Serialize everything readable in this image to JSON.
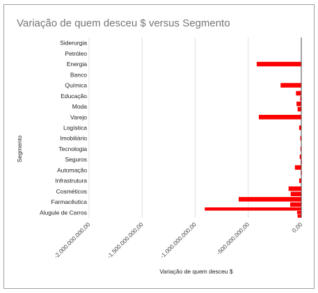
{
  "chart_data": {
    "type": "bar",
    "orientation": "horizontal",
    "title": "Variação de quem desceu $ versus Segmento",
    "xlabel": "Variação de quem desceu $",
    "ylabel": "Segmento",
    "xlim": [
      -2000000000,
      0
    ],
    "x_ticks": [
      {
        "value": -2000000000,
        "label": "-2.000.000.000,00"
      },
      {
        "value": -1500000000,
        "label": "-1.500.000.000,00"
      },
      {
        "value": -1000000000,
        "label": "-1.000.000.000,00"
      },
      {
        "value": -500000000,
        "label": "-500.000.000,00"
      },
      {
        "value": 0,
        "label": "0,00"
      }
    ],
    "categories": [
      "Siderurgia",
      "Petróleo",
      "Energia",
      "Banco",
      "Química",
      "Educação",
      "Moda",
      "Varejo",
      "Logística",
      "Imobiliário",
      "Tecnologia",
      "Seguros",
      "Automação",
      "Infrastrutura",
      "Cosméticos",
      "Farmacêutica",
      "Alugule de Carros"
    ],
    "bars": [
      {
        "category": "Energia",
        "value": -420000000
      },
      {
        "category": "Química",
        "value": -195000000
      },
      {
        "category": "Educação",
        "value": -50000000
      },
      {
        "category": "Educação",
        "value": -10000000
      },
      {
        "category": "Moda",
        "value": -45000000
      },
      {
        "category": "Moda",
        "value": -35000000
      },
      {
        "category": "Varejo",
        "value": -400000000
      },
      {
        "category": "Logística",
        "value": -20000000
      },
      {
        "category": "Imobiliário",
        "value": -10000000
      },
      {
        "category": "Tecnologia",
        "value": -8000000
      },
      {
        "category": "Seguros",
        "value": -15000000
      },
      {
        "category": "Seguros",
        "value": -5000000
      },
      {
        "category": "Automação",
        "value": -60000000
      },
      {
        "category": "Automação",
        "value": -5000000
      },
      {
        "category": "Infrastrutura",
        "value": -20000000
      },
      {
        "category": "Cosméticos",
        "value": -120000000
      },
      {
        "category": "Cosméticos",
        "value": -100000000
      },
      {
        "category": "Farmacêutica",
        "value": -590000000
      },
      {
        "category": "Farmacêutica",
        "value": -105000000
      },
      {
        "category": "Alugule de Carros",
        "value": -910000000
      },
      {
        "category": "Alugule de Carros",
        "value": -40000000
      },
      {
        "category": "Alugule de Carros",
        "value": -35000000
      }
    ],
    "bar_color": "#ff0000",
    "grid": true,
    "legend": "none"
  }
}
